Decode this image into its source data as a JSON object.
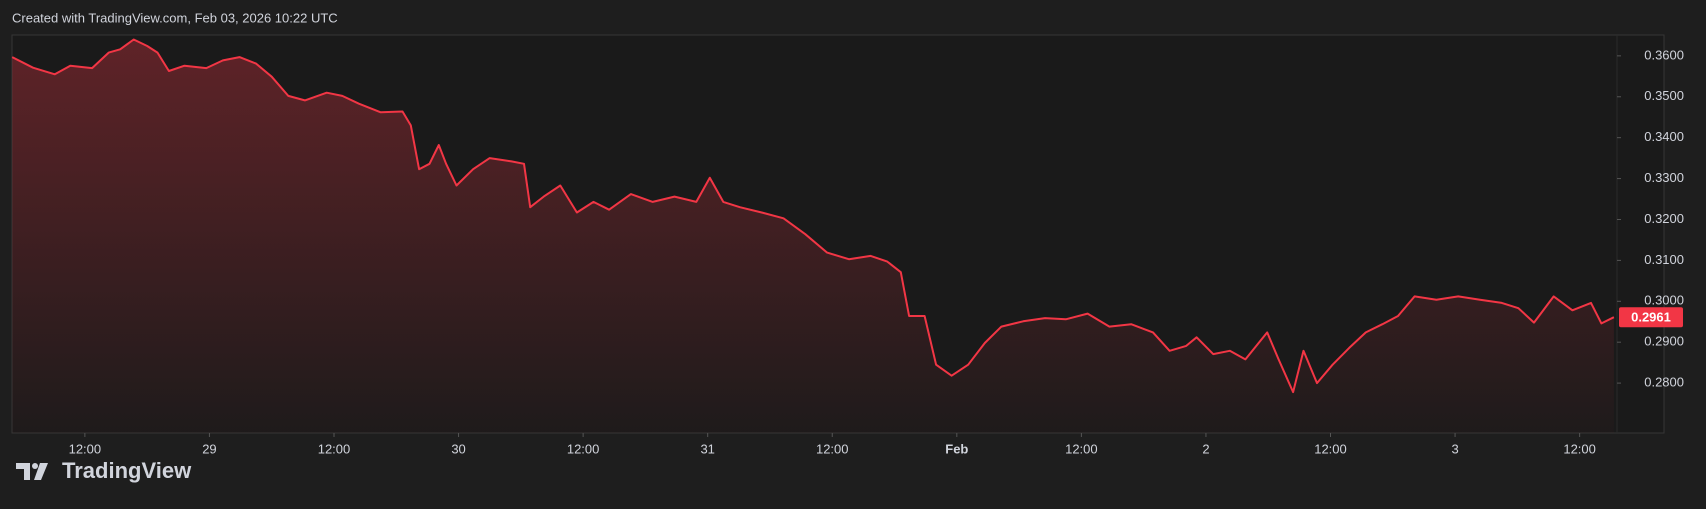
{
  "chart_data": {
    "type": "area",
    "title": "Created with TradingView.com, Feb 03, 2026 10:22 UTC",
    "watermark": "TradingView",
    "color": "#f23645",
    "x": [
      5.0,
      7.0,
      9.1,
      10.6,
      12.7,
      14.3,
      15.4,
      16.7,
      18.0,
      19.0,
      20.1,
      21.6,
      23.7,
      25.3,
      26.9,
      28.5,
      30.0,
      31.6,
      33.2,
      35.3,
      36.8,
      38.4,
      40.5,
      42.6,
      43.4,
      44.2,
      45.2,
      46.1,
      46.8,
      47.8,
      49.4,
      51.0,
      53.1,
      54.3,
      54.9,
      56.2,
      57.8,
      59.4,
      61.0,
      62.5,
      64.6,
      66.7,
      68.8,
      70.9,
      72.2,
      73.5,
      75.1,
      77.2,
      79.3,
      81.4,
      83.5,
      85.6,
      87.7,
      89.3,
      90.6,
      91.4,
      92.9,
      94.0,
      95.5,
      97.1,
      98.7,
      100.3,
      102.4,
      104.5,
      106.5,
      108.6,
      110.7,
      112.8,
      114.9,
      116.5,
      118.1,
      119.1,
      120.7,
      122.3,
      123.8,
      125.9,
      127.0,
      128.4,
      129.4,
      130.7,
      132.2,
      133.8,
      135.4,
      137.0,
      138.5,
      140.1,
      142.2,
      144.3,
      146.4,
      148.5,
      150.1,
      151.6,
      153.5,
      155.3,
      157.1,
      158.1,
      159.3
    ],
    "values": [
      0.3597,
      0.3571,
      0.3555,
      0.3576,
      0.357,
      0.3608,
      0.3616,
      0.364,
      0.3624,
      0.3608,
      0.3563,
      0.3576,
      0.357,
      0.3589,
      0.3597,
      0.3581,
      0.3549,
      0.3502,
      0.3491,
      0.351,
      0.3502,
      0.3483,
      0.3462,
      0.3464,
      0.343,
      0.3323,
      0.3336,
      0.3382,
      0.3336,
      0.3283,
      0.3323,
      0.335,
      0.3342,
      0.3336,
      0.323,
      0.3256,
      0.3283,
      0.3217,
      0.3243,
      0.3224,
      0.3262,
      0.3243,
      0.3256,
      0.3243,
      0.3302,
      0.3243,
      0.323,
      0.3217,
      0.3203,
      0.3164,
      0.3119,
      0.3103,
      0.3111,
      0.3097,
      0.3071,
      0.2964,
      0.2964,
      0.2845,
      0.2818,
      0.2845,
      0.2898,
      0.2938,
      0.2951,
      0.2959,
      0.2956,
      0.297,
      0.2938,
      0.2944,
      0.2924,
      0.2879,
      0.2891,
      0.2912,
      0.2871,
      0.2879,
      0.2858,
      0.2924,
      0.2858,
      0.2778,
      0.2879,
      0.28,
      0.2845,
      0.2886,
      0.2924,
      0.2944,
      0.2964,
      0.3012,
      0.3004,
      0.3012,
      0.3004,
      0.2996,
      0.2983,
      0.2948,
      0.3012,
      0.2978,
      0.2996,
      0.2946,
      0.2961
    ],
    "current_price": {
      "value": 0.2961,
      "label": "0.2961"
    },
    "xlim": [
      4.98,
      159.6
    ],
    "ylim": [
      0.2678,
      0.3651
    ],
    "xticks": [
      {
        "value": 12,
        "label": "12:00"
      },
      {
        "value": 24,
        "label": "29"
      },
      {
        "value": 36,
        "label": "12:00"
      },
      {
        "value": 48,
        "label": "30"
      },
      {
        "value": 60,
        "label": "12:00"
      },
      {
        "value": 72,
        "label": "31"
      },
      {
        "value": 84,
        "label": "12:00"
      },
      {
        "value": 96,
        "label": "Feb"
      },
      {
        "value": 108,
        "label": "12:00"
      },
      {
        "value": 120,
        "label": "2"
      },
      {
        "value": 132,
        "label": "12:00"
      },
      {
        "value": 144,
        "label": "3"
      },
      {
        "value": 156,
        "label": "12:00"
      }
    ],
    "yticks": [
      {
        "value": 0.28,
        "label": "0.2800"
      },
      {
        "value": 0.29,
        "label": "0.2900"
      },
      {
        "value": 0.3,
        "label": "0.3000"
      },
      {
        "value": 0.31,
        "label": "0.3100"
      },
      {
        "value": 0.32,
        "label": "0.3200"
      },
      {
        "value": 0.33,
        "label": "0.3300"
      },
      {
        "value": 0.34,
        "label": "0.3400"
      },
      {
        "value": 0.35,
        "label": "0.3500"
      },
      {
        "value": 0.36,
        "label": "0.3600"
      }
    ]
  }
}
